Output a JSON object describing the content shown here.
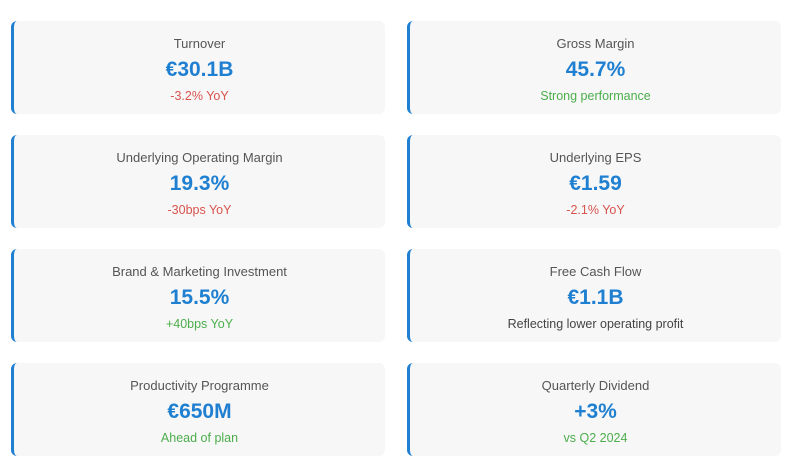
{
  "accent_color": "#1f7fd1",
  "status_colors": {
    "negative": "#d9534f",
    "positive": "#4cae4c",
    "neutral": "#444444"
  },
  "cards": [
    {
      "label": "Turnover",
      "value": "€30.1B",
      "note": "-3.2% YoY",
      "note_status": "negative"
    },
    {
      "label": "Gross Margin",
      "value": "45.7%",
      "note": "Strong performance",
      "note_status": "positive"
    },
    {
      "label": "Underlying Operating Margin",
      "value": "19.3%",
      "note": "-30bps YoY",
      "note_status": "negative"
    },
    {
      "label": "Underlying EPS",
      "value": "€1.59",
      "note": "-2.1% YoY",
      "note_status": "negative"
    },
    {
      "label": "Brand & Marketing Investment",
      "value": "15.5%",
      "note": "+40bps YoY",
      "note_status": "positive"
    },
    {
      "label": "Free Cash Flow",
      "value": "€1.1B",
      "note": "Reflecting lower operating profit",
      "note_status": "neutral"
    },
    {
      "label": "Productivity Programme",
      "value": "€650M",
      "note": "Ahead of plan",
      "note_status": "positive"
    },
    {
      "label": "Quarterly Dividend",
      "value": "+3%",
      "note": "vs Q2 2024",
      "note_status": "positive"
    }
  ]
}
